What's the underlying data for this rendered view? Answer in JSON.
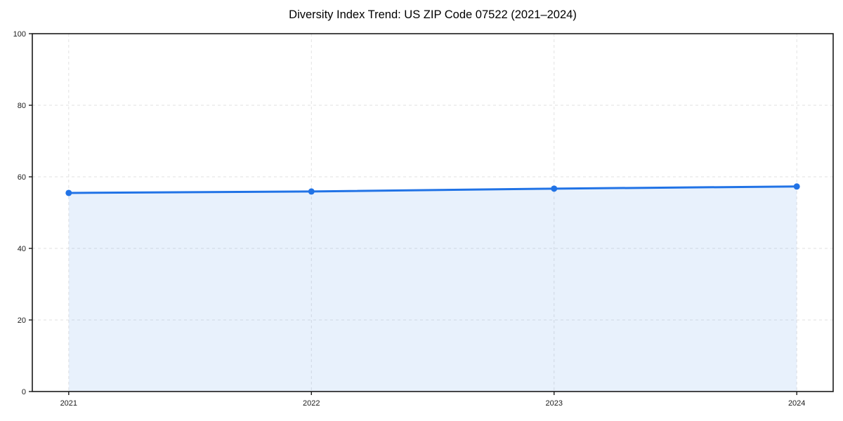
{
  "page": {
    "background": "#ffffff"
  },
  "chart_data": {
    "type": "area",
    "title": "Diversity Index Trend: US ZIP Code 07522 (2021–2024)",
    "categories": [
      2021,
      2022,
      2023,
      2024
    ],
    "series": [
      {
        "name": "Diversity Index",
        "values": [
          55.5,
          55.9,
          56.7,
          57.3
        ]
      }
    ],
    "xlabel": "",
    "ylabel": "",
    "xlim": [
      2020.85,
      2024.15
    ],
    "ylim": [
      0,
      100
    ],
    "yticks": [
      0,
      20,
      40,
      60,
      80,
      100
    ],
    "xticks": [
      "2021",
      "2022",
      "2023",
      "2024"
    ],
    "grid": true,
    "grid_style": "dashed",
    "legend_position": "none",
    "marker": "circle",
    "colors": {
      "line": "#2173e6",
      "marker": "#2173e6",
      "fill": "rgba(33,115,230,0.10)",
      "grid": "#e2e2e2",
      "axis_box": "#1a1a1a",
      "tick_label": "#1a1a1a",
      "title": "#000000",
      "background": "#ffffff"
    }
  }
}
